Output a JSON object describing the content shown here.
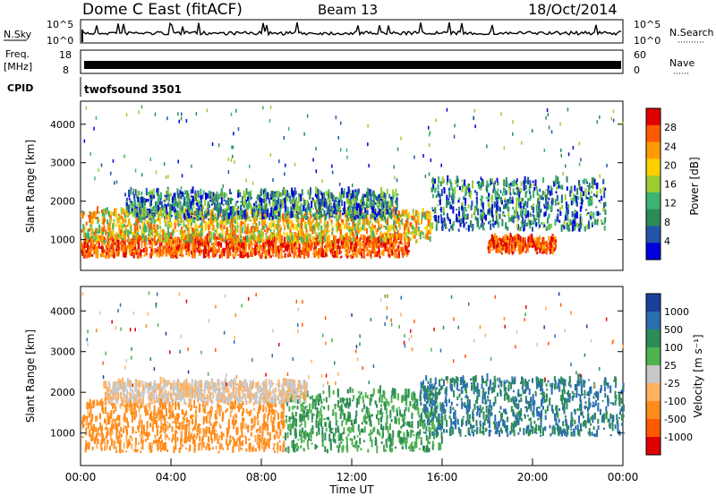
{
  "header": {
    "station": "Dome C East (fitACF)",
    "beam": "Beam 13",
    "date": "18/Oct/2014"
  },
  "strips": {
    "nsky": {
      "label": "N.Sky",
      "ticks": [
        "10^5",
        "10^0"
      ],
      "right_label": "N.Search",
      "right_ticks": [
        "10^5",
        "10^0"
      ]
    },
    "freq": {
      "label": "Freq.",
      "unit": "[MHz]",
      "ticks": [
        "18",
        "8"
      ],
      "right_label": "Nave",
      "right_ticks": [
        "60",
        "0"
      ]
    },
    "cpid": {
      "label": "CPID",
      "value": "twofsound 3501"
    }
  },
  "chart_data": [
    {
      "type": "heatmap",
      "name": "power-panel",
      "xlabel": "",
      "ylabel": "Slant Range [km]",
      "xlim": [
        0,
        24
      ],
      "ylim": [
        200,
        4600
      ],
      "yticks": [
        1000,
        2000,
        3000,
        4000
      ],
      "colorbar": {
        "label": "Power [dB]",
        "ticks": [
          "28",
          "24",
          "20",
          "16",
          "12",
          "8",
          "4"
        ],
        "colors": [
          "#e00000",
          "#ff5a00",
          "#ff9a00",
          "#ffd000",
          "#9acd32",
          "#3cb371",
          "#2e8b57",
          "#2255aa",
          "#0000dd"
        ]
      },
      "bands": [
        {
          "t": [
            0,
            14.5
          ],
          "range": [
            500,
            1000
          ],
          "level": "high"
        },
        {
          "t": [
            0,
            15.5
          ],
          "range": [
            900,
            1700
          ],
          "level": "mid"
        },
        {
          "t": [
            2,
            14
          ],
          "range": [
            1500,
            2200
          ],
          "level": "low"
        },
        {
          "t": [
            15.5,
            23.2
          ],
          "range": [
            1200,
            2500
          ],
          "level": "streaks"
        },
        {
          "t": [
            18,
            21
          ],
          "range": [
            600,
            1000
          ],
          "level": "high"
        }
      ]
    },
    {
      "type": "heatmap",
      "name": "velocity-panel",
      "xlabel": "Time UT",
      "ylabel": "Slant Range [km]",
      "xlim": [
        0,
        24
      ],
      "ylim": [
        200,
        4600
      ],
      "yticks": [
        1000,
        2000,
        3000,
        4000
      ],
      "xticks": [
        "00:00",
        "04:00",
        "08:00",
        "12:00",
        "16:00",
        "20:00",
        "00:00"
      ],
      "colorbar": {
        "label": "Velocity [m s⁻¹]",
        "ticks": [
          "1000",
          "500",
          "100",
          "25",
          "-25",
          "-100",
          "-500",
          "-1000"
        ],
        "colors": [
          "#1c3f9c",
          "#2a6fb0",
          "#2e8b57",
          "#4fb24f",
          "#c8c8c8",
          "#ffb060",
          "#ff8c1a",
          "#ff5a00",
          "#e00000"
        ]
      },
      "bands": [
        {
          "t": [
            0,
            9
          ],
          "range": [
            500,
            1700
          ],
          "velocity": "-100"
        },
        {
          "t": [
            9,
            16
          ],
          "range": [
            500,
            2000
          ],
          "velocity": "100"
        },
        {
          "t": [
            1,
            10
          ],
          "range": [
            1700,
            2200
          ],
          "velocity": "25"
        },
        {
          "t": [
            15,
            24
          ],
          "range": [
            900,
            2300
          ],
          "velocity": "500"
        }
      ]
    }
  ]
}
